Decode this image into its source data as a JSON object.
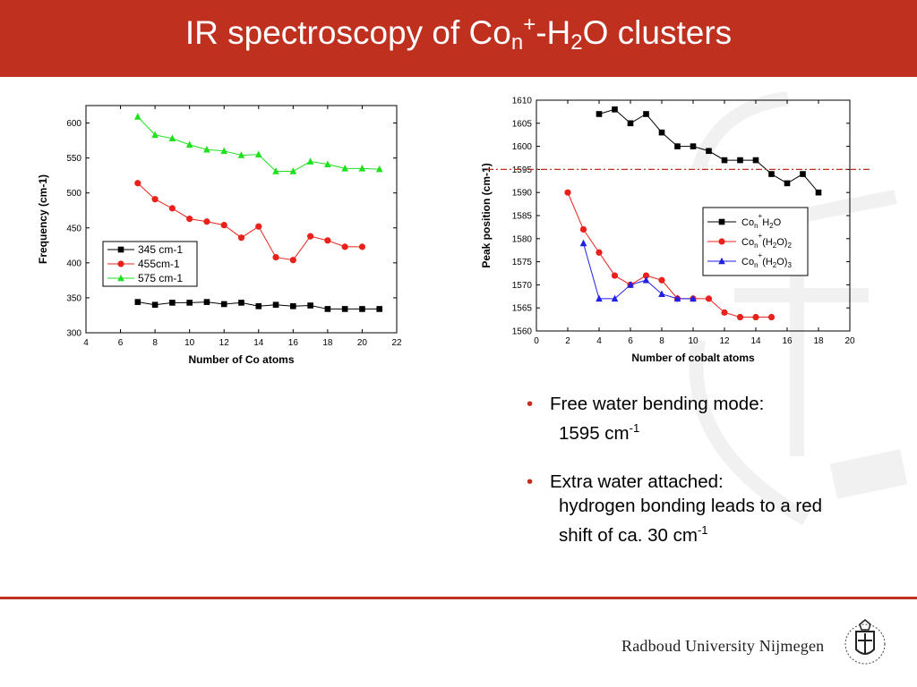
{
  "slide": {
    "title_main": "IR spectroscopy of Co",
    "title_sub_n": "n",
    "title_sup_plus": "+",
    "title_dash_h": "-H",
    "title_sub_2": "2",
    "title_end": "O clusters",
    "bullets": [
      {
        "line1": "Free water bending mode:",
        "line2_text": "1595 cm",
        "line2_sup": "-1",
        "line2_after": ""
      },
      {
        "line1": "Extra water attached:",
        "line2_text": "hydrogen bonding leads to a red",
        "line3_text": "shift  of ca. 30 cm",
        "line3_sup": "-1"
      }
    ],
    "bullet_glyph": "•",
    "brand": "Radboud University Nijmegen",
    "colors": {
      "accent": "#c0301f",
      "black": "#000000",
      "red": "#e8221b",
      "green": "#1ee01e",
      "blue": "#1f1fe6"
    }
  },
  "chart_data": [
    {
      "type": "line",
      "title": "",
      "xlabel": "Number of Co atoms",
      "ylabel": "Frequency (cm-1)",
      "xlim": [
        4,
        22
      ],
      "ylim": [
        300,
        625
      ],
      "xticks": [
        4,
        6,
        8,
        10,
        12,
        14,
        16,
        18,
        20,
        22
      ],
      "yticks": [
        300,
        350,
        400,
        450,
        500,
        550,
        600
      ],
      "grid": false,
      "legend_position": "bottom-left",
      "series": [
        {
          "name": "345 cm-1",
          "color": "#000000",
          "marker": "square",
          "x": [
            7,
            8,
            9,
            10,
            11,
            12,
            13,
            14,
            15,
            16,
            17,
            18,
            19,
            20,
            21
          ],
          "y": [
            344,
            340,
            343,
            343,
            344,
            341,
            343,
            338,
            340,
            338,
            339,
            334,
            334,
            334,
            334
          ]
        },
        {
          "name": "455cm-1",
          "color": "#e8221b",
          "marker": "circle",
          "x": [
            7,
            8,
            9,
            10,
            11,
            12,
            13,
            14,
            15,
            16,
            17,
            18,
            19,
            20
          ],
          "y": [
            514,
            491,
            478,
            463,
            459,
            454,
            436,
            452,
            408,
            404,
            438,
            432,
            423,
            423
          ]
        },
        {
          "name": "575 cm-1",
          "color": "#1ee01e",
          "marker": "triangle",
          "x": [
            7,
            8,
            9,
            10,
            11,
            12,
            13,
            14,
            15,
            16,
            17,
            18,
            19,
            20,
            21
          ],
          "y": [
            609,
            583,
            578,
            569,
            562,
            560,
            554,
            555,
            531,
            531,
            545,
            541,
            535,
            535,
            534
          ]
        }
      ]
    },
    {
      "type": "line",
      "title": "",
      "xlabel": "Number of cobalt atoms",
      "ylabel": "Peak position (cm-1)",
      "xlim": [
        0,
        20
      ],
      "ylim": [
        1560,
        1610
      ],
      "xticks": [
        0,
        2,
        4,
        6,
        8,
        10,
        12,
        14,
        16,
        18,
        20
      ],
      "yticks": [
        1560,
        1565,
        1570,
        1575,
        1580,
        1585,
        1590,
        1595,
        1600,
        1605,
        1610
      ],
      "grid": false,
      "legend_position": "right",
      "reference_line": {
        "y": 1595,
        "color": "#c0301f",
        "style": "dash-dot"
      },
      "series": [
        {
          "name": "Con+H2O",
          "name_parts": [
            "Co",
            "n",
            "+",
            "H",
            "2",
            "O"
          ],
          "color": "#000000",
          "marker": "square",
          "x": [
            4,
            5,
            6,
            7,
            8,
            9,
            10,
            11,
            12,
            13,
            14,
            15,
            16,
            17,
            18
          ],
          "y": [
            1607,
            1608,
            1605,
            1607,
            1603,
            1600,
            1600,
            1599,
            1597,
            1597,
            1597,
            1594,
            1592,
            1594,
            1590
          ]
        },
        {
          "name": "Con+(H2O)2",
          "name_parts": [
            "Co",
            "n",
            "+",
            "(H",
            "2",
            "O)",
            "2"
          ],
          "color": "#e8221b",
          "marker": "circle",
          "x": [
            2,
            3,
            4,
            5,
            6,
            7,
            8,
            9,
            10,
            11,
            12,
            13,
            14,
            15
          ],
          "y": [
            1590,
            1582,
            1577,
            1572,
            1570,
            1572,
            1571,
            1567,
            1567,
            1567,
            1564,
            1563,
            1563,
            1563
          ]
        },
        {
          "name": "Con+(H2O)3",
          "name_parts": [
            "Co",
            "n",
            "+",
            "(H",
            "2",
            "O)",
            "3"
          ],
          "color": "#1f1fe6",
          "marker": "triangle",
          "x": [
            3,
            4,
            5,
            6,
            7,
            8,
            9,
            10
          ],
          "y": [
            1579,
            1567,
            1567,
            1570,
            1571,
            1568,
            1567,
            1567
          ]
        }
      ]
    }
  ]
}
